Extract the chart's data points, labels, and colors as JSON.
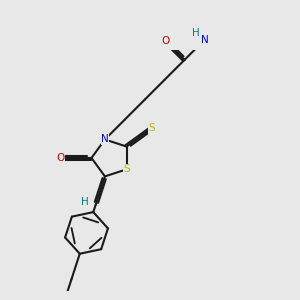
{
  "background_color": "#e8e8e8",
  "bond_color": "#1a1a1a",
  "bond_width": 1.5,
  "dbo": 0.055,
  "fs": 7.0,
  "S_color": "#b8b800",
  "N_color": "#0000cc",
  "O_color": "#cc0000",
  "H_color": "#008080",
  "C_color": "#1a1a1a",
  "xlim": [
    -1.0,
    8.5
  ],
  "ylim": [
    -1.2,
    6.5
  ]
}
